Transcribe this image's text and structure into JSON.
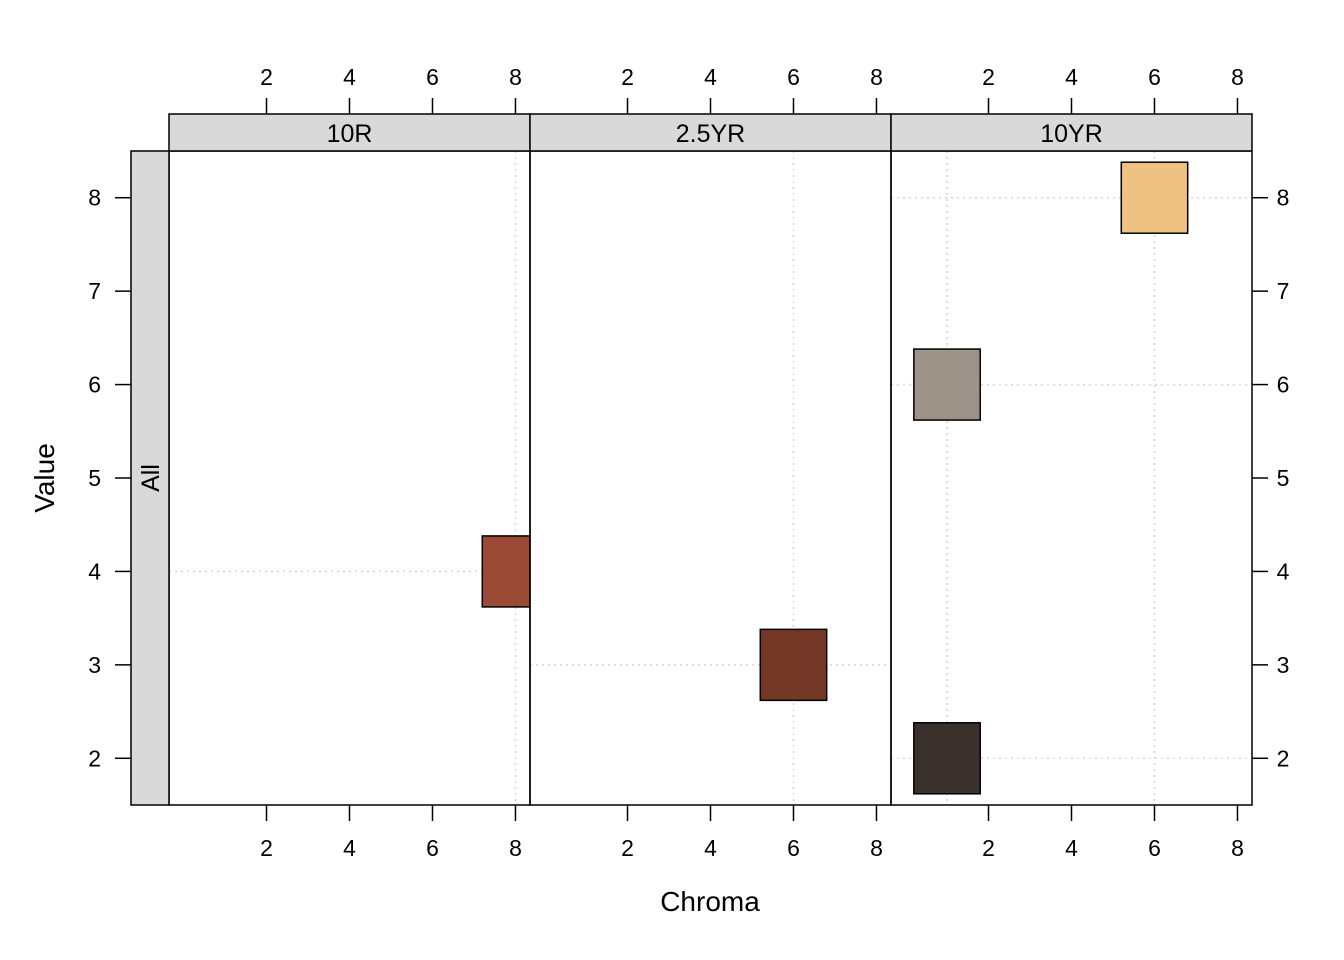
{
  "chart_data": {
    "type": "scatter",
    "xlabel": "Chroma",
    "ylabel": "Value",
    "row_strip_label": "All",
    "x_ticks": [
      2,
      4,
      6,
      8
    ],
    "y_ticks": [
      2,
      3,
      4,
      5,
      6,
      7,
      8
    ],
    "xlim": [
      -0.35,
      8.35
    ],
    "ylim": [
      1.5,
      8.5
    ],
    "grid": "dotted",
    "panels": [
      {
        "label": "10R",
        "points": [
          {
            "chroma": 8,
            "value": 4,
            "color": "#9A4A35"
          }
        ]
      },
      {
        "label": "2.5YR",
        "points": [
          {
            "chroma": 6,
            "value": 3,
            "color": "#743726"
          }
        ]
      },
      {
        "label": "10YR",
        "points": [
          {
            "chroma": 1,
            "value": 2,
            "color": "#3A312C"
          },
          {
            "chroma": 1,
            "value": 6,
            "color": "#9C9288"
          },
          {
            "chroma": 6,
            "value": 8,
            "color": "#EEC381"
          }
        ]
      }
    ]
  }
}
